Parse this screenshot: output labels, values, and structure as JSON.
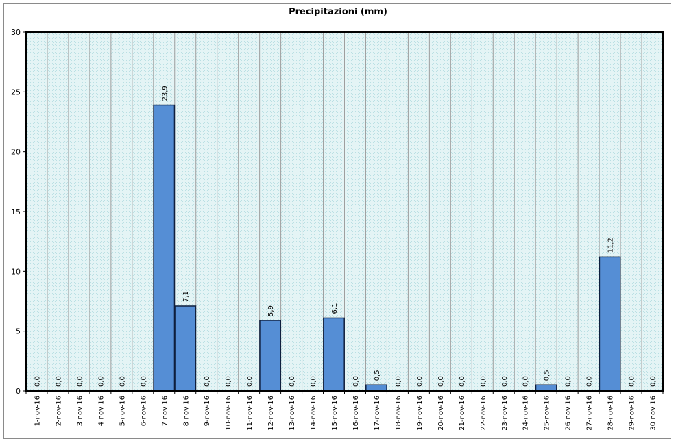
{
  "chart_data": {
    "type": "bar",
    "title": "Precipitazioni (mm)",
    "xlabel": "",
    "ylabel": "",
    "ylim": [
      0,
      30
    ],
    "yticks": [
      0,
      5,
      10,
      15,
      20,
      25,
      30
    ],
    "grid": true,
    "categories": [
      "1-nov-16",
      "2-nov-16",
      "3-nov-16",
      "4-nov-16",
      "5-nov-16",
      "6-nov-16",
      "7-nov-16",
      "8-nov-16",
      "9-nov-16",
      "10-nov-16",
      "11-nov-16",
      "12-nov-16",
      "13-nov-16",
      "14-nov-16",
      "15-nov-16",
      "16-nov-16",
      "17-nov-16",
      "18-nov-16",
      "19-nov-16",
      "20-nov-16",
      "21-nov-16",
      "22-nov-16",
      "23-nov-16",
      "24-nov-16",
      "25-nov-16",
      "26-nov-16",
      "27-nov-16",
      "28-nov-16",
      "29-nov-16",
      "30-nov-16"
    ],
    "values": [
      0,
      0,
      0,
      0,
      0,
      0,
      23.9,
      7.1,
      0,
      0,
      0,
      5.9,
      0,
      0,
      6.1,
      0,
      0.5,
      0,
      0,
      0,
      0,
      0,
      0,
      0,
      0.5,
      0,
      0,
      11.2,
      0,
      0
    ],
    "data_labels": [
      "0,0",
      "0,0",
      "0,0",
      "0,0",
      "0,0",
      "0,0",
      "23,9",
      "7,1",
      "0,0",
      "0,0",
      "0,0",
      "5,9",
      "0,0",
      "0,0",
      "6,1",
      "0,0",
      "0,5",
      "0,0",
      "0,0",
      "0,0",
      "0,0",
      "0,0",
      "0,0",
      "0,0",
      "0,5",
      "0,0",
      "0,0",
      "11,2",
      "0,0",
      "0,0"
    ],
    "colors": {
      "bar_fill": "#558ed5",
      "bar_stroke": "#0f1f3d",
      "plot_bg": "#dcf0f2",
      "grid": "#9e9e9e"
    }
  }
}
